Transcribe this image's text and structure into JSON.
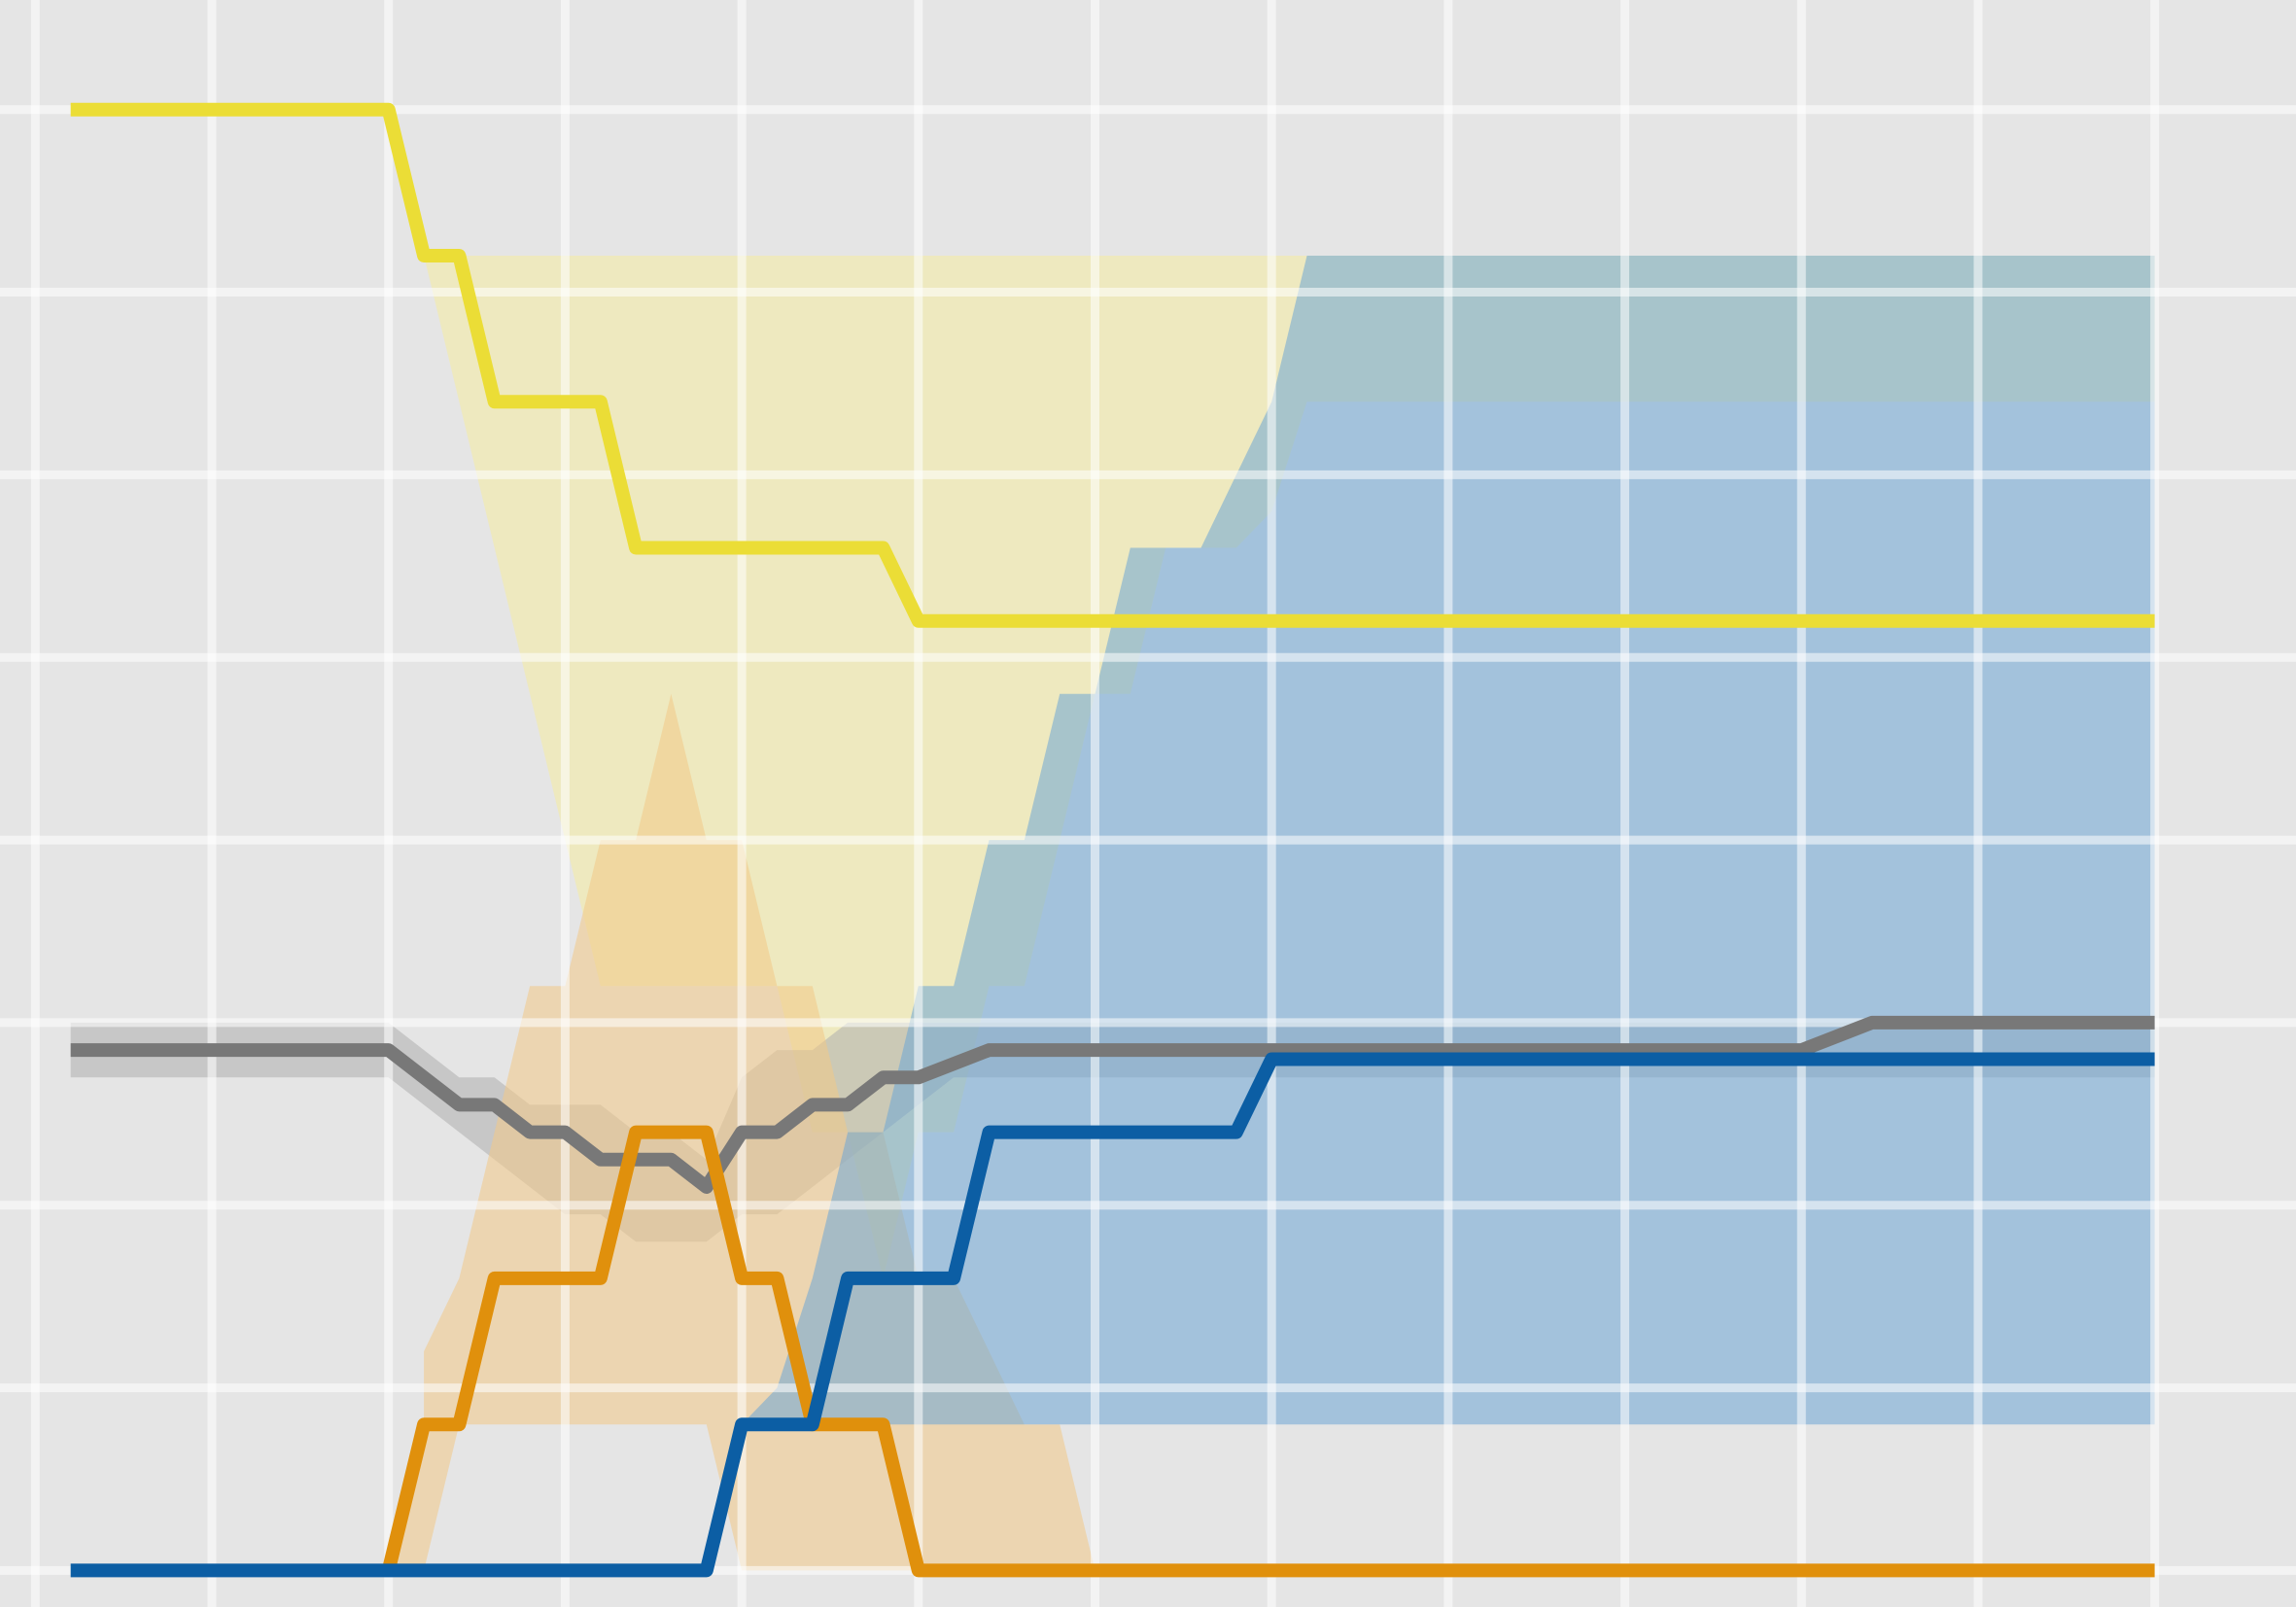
{
  "chart_data": {
    "type": "line",
    "title": "",
    "xlabel": "",
    "ylabel": "",
    "xlim": [
      -0.2,
      12.8
    ],
    "ylim": [
      -0.2,
      8.6
    ],
    "grid": true,
    "background_color": "#e5e5e5",
    "grid_color": "#ffffff",
    "x_gridlines": [
      0,
      1,
      2,
      3,
      4,
      5,
      6,
      7,
      8,
      9,
      10,
      11,
      12
    ],
    "y_gridlines": [
      0,
      1,
      2,
      3,
      4,
      5,
      6,
      7,
      8
    ],
    "series": [
      {
        "color": "#ebdd36",
        "band_color": "#f5eca0",
        "points": [
          [
            0.2,
            8
          ],
          [
            2,
            8
          ],
          [
            2.2,
            7.2
          ],
          [
            2.4,
            7.2
          ],
          [
            2.6,
            6.4
          ],
          [
            3.2,
            6.4
          ],
          [
            3.4,
            5.6
          ],
          [
            4.8,
            5.6
          ],
          [
            5,
            5.2
          ],
          [
            12,
            5.2
          ]
        ],
        "band": [
          [
            2,
            8
          ],
          [
            2.2,
            7.2
          ],
          [
            2.4,
            6.4
          ],
          [
            2.6,
            5.6
          ],
          [
            2.8,
            4.8
          ],
          [
            3,
            4
          ],
          [
            3.2,
            3.2
          ],
          [
            3.4,
            3.2
          ],
          [
            4.2,
            3.2
          ],
          [
            4.4,
            2.4
          ],
          [
            4.6,
            2.4
          ],
          [
            4.8,
            1.6
          ],
          [
            5,
            2.4
          ],
          [
            5.2,
            2.4
          ],
          [
            5.4,
            3.2
          ],
          [
            5.6,
            3.2
          ],
          [
            5.8,
            4
          ],
          [
            6,
            4.8
          ],
          [
            6.2,
            4.8
          ],
          [
            6.4,
            5.6
          ],
          [
            6.8,
            5.6
          ],
          [
            7,
            5.8
          ],
          [
            7.2,
            6.4
          ],
          [
            12,
            6.4
          ],
          [
            12,
            7.2
          ],
          [
            2.2,
            7.2
          ]
        ]
      },
      {
        "color": "#787878",
        "band_color": "#aeaeae",
        "points": [
          [
            0.2,
            2.85
          ],
          [
            2,
            2.85
          ],
          [
            2.4,
            2.55
          ],
          [
            2.6,
            2.55
          ],
          [
            2.8,
            2.4
          ],
          [
            3,
            2.4
          ],
          [
            3.2,
            2.25
          ],
          [
            3.6,
            2.25
          ],
          [
            3.8,
            2.1
          ],
          [
            4,
            2.4
          ],
          [
            4.2,
            2.4
          ],
          [
            4.4,
            2.55
          ],
          [
            4.6,
            2.55
          ],
          [
            4.8,
            2.7
          ],
          [
            5,
            2.7
          ],
          [
            5.4,
            2.85
          ],
          [
            10,
            2.85
          ],
          [
            10.4,
            3
          ],
          [
            12,
            3
          ]
        ],
        "band": [
          [
            0.2,
            3
          ],
          [
            2,
            3
          ],
          [
            2.4,
            2.7
          ],
          [
            2.6,
            2.7
          ],
          [
            2.8,
            2.55
          ],
          [
            3.2,
            2.55
          ],
          [
            3.4,
            2.4
          ],
          [
            3.6,
            2.4
          ],
          [
            3.8,
            2.25
          ],
          [
            4,
            2.7
          ],
          [
            4.2,
            2.85
          ],
          [
            4.4,
            2.85
          ],
          [
            4.6,
            3
          ],
          [
            12,
            3
          ],
          [
            12,
            2.7
          ],
          [
            5.2,
            2.7
          ],
          [
            5,
            2.55
          ],
          [
            4.8,
            2.4
          ],
          [
            4.6,
            2.25
          ],
          [
            4.4,
            2.1
          ],
          [
            4.2,
            1.95
          ],
          [
            4,
            1.95
          ],
          [
            3.8,
            1.8
          ],
          [
            3.4,
            1.8
          ],
          [
            3.2,
            1.95
          ],
          [
            3,
            1.95
          ],
          [
            2.8,
            2.1
          ],
          [
            2.6,
            2.25
          ],
          [
            2.4,
            2.4
          ],
          [
            2,
            2.7
          ],
          [
            0.2,
            2.7
          ]
        ]
      },
      {
        "color": "#e0900c",
        "band_color": "#f2c887",
        "points": [
          [
            2,
            0
          ],
          [
            2.2,
            0.8
          ],
          [
            2.4,
            0.8
          ],
          [
            2.6,
            1.6
          ],
          [
            3.2,
            1.6
          ],
          [
            3.4,
            2.4
          ],
          [
            3.8,
            2.4
          ],
          [
            4,
            1.6
          ],
          [
            4.2,
            1.6
          ],
          [
            4.4,
            0.8
          ],
          [
            4.8,
            0.8
          ],
          [
            5,
            0
          ],
          [
            12,
            0
          ]
        ],
        "band": [
          [
            2,
            0
          ],
          [
            2.2,
            0.8
          ],
          [
            2.2,
            1.2
          ],
          [
            2.4,
            1.6
          ],
          [
            2.6,
            2.4
          ],
          [
            2.8,
            3.2
          ],
          [
            3,
            3.2
          ],
          [
            3.2,
            4
          ],
          [
            3.4,
            4
          ],
          [
            3.6,
            4.8
          ],
          [
            3.8,
            4
          ],
          [
            4,
            4
          ],
          [
            4.2,
            3.2
          ],
          [
            4.4,
            3.2
          ],
          [
            4.6,
            2.4
          ],
          [
            4.8,
            2.4
          ],
          [
            5,
            1.6
          ],
          [
            5.2,
            1.6
          ],
          [
            5.4,
            1.2
          ],
          [
            5.6,
            0.8
          ],
          [
            5.8,
            0.8
          ],
          [
            6,
            0
          ],
          [
            4,
            0
          ],
          [
            3.8,
            0.8
          ],
          [
            2.4,
            0.8
          ],
          [
            2.2,
            0
          ]
        ]
      },
      {
        "color": "#0c5ea4",
        "band_color": "#6ea6d6",
        "points": [
          [
            0.2,
            0
          ],
          [
            3.8,
            0
          ],
          [
            4,
            0.8
          ],
          [
            4.4,
            0.8
          ],
          [
            4.6,
            1.6
          ],
          [
            5.2,
            1.6
          ],
          [
            5.4,
            2.4
          ],
          [
            6.8,
            2.4
          ],
          [
            7,
            2.8
          ],
          [
            12,
            2.8
          ]
        ],
        "band": [
          [
            4,
            0.8
          ],
          [
            4.2,
            1
          ],
          [
            4.4,
            1.6
          ],
          [
            4.6,
            2.4
          ],
          [
            4.8,
            2.4
          ],
          [
            5,
            3.2
          ],
          [
            5.2,
            3.2
          ],
          [
            5.4,
            4
          ],
          [
            5.6,
            4
          ],
          [
            5.8,
            4.8
          ],
          [
            6,
            4.8
          ],
          [
            6.2,
            5.6
          ],
          [
            6.6,
            5.6
          ],
          [
            6.8,
            6
          ],
          [
            7,
            6.4
          ],
          [
            7.2,
            7.2
          ],
          [
            12,
            7.2
          ],
          [
            12,
            0.8
          ]
        ]
      }
    ]
  }
}
